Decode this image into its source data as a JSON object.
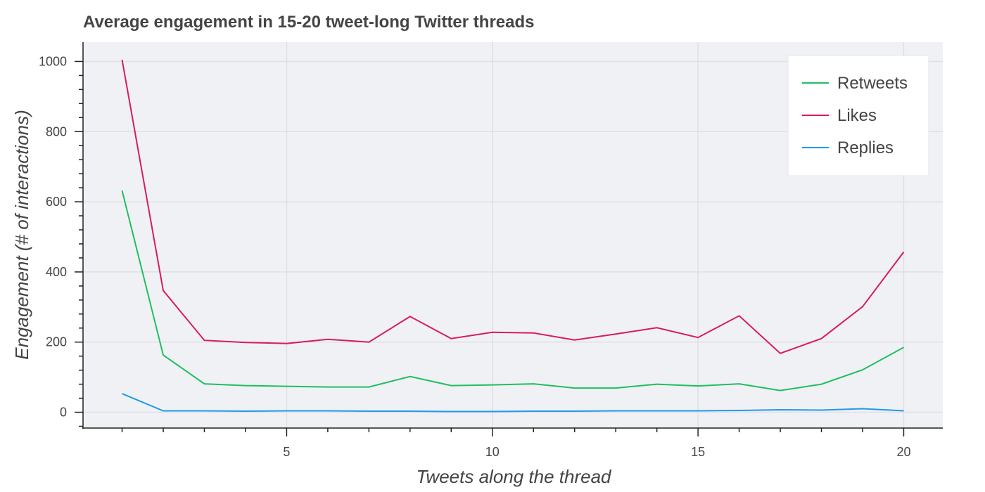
{
  "chart_data": {
    "type": "line",
    "title": "Average engagement in 15-20 tweet-long Twitter threads",
    "xlabel": "Tweets along the thread",
    "ylabel": "Engagement (# of interactions)",
    "x": [
      1,
      2,
      3,
      4,
      5,
      6,
      7,
      8,
      9,
      10,
      11,
      12,
      13,
      14,
      15,
      16,
      17,
      18,
      19,
      20
    ],
    "xlim": [
      0.05,
      20.95
    ],
    "ylim": [
      -45,
      1055
    ],
    "xticks": [
      5,
      10,
      15,
      20
    ],
    "yticks": [
      0,
      200,
      400,
      600,
      800,
      1000
    ],
    "grid": true,
    "legend_position": "top-right",
    "series": [
      {
        "name": "Retweets",
        "color": "#1fbf5f",
        "values": [
          632,
          163,
          81,
          76,
          74,
          72,
          72,
          102,
          76,
          78,
          81,
          69,
          69,
          80,
          75,
          81,
          62,
          80,
          121,
          185
        ]
      },
      {
        "name": "Likes",
        "color": "#d81b60",
        "values": [
          1005,
          347,
          205,
          199,
          196,
          208,
          200,
          273,
          210,
          228,
          226,
          206,
          223,
          241,
          213,
          275,
          168,
          210,
          301,
          457
        ]
      },
      {
        "name": "Replies",
        "color": "#1e9be9",
        "values": [
          53,
          4,
          4,
          3,
          4,
          4,
          3,
          3,
          2,
          2,
          3,
          3,
          4,
          4,
          4,
          5,
          7,
          6,
          10,
          4
        ]
      }
    ]
  }
}
